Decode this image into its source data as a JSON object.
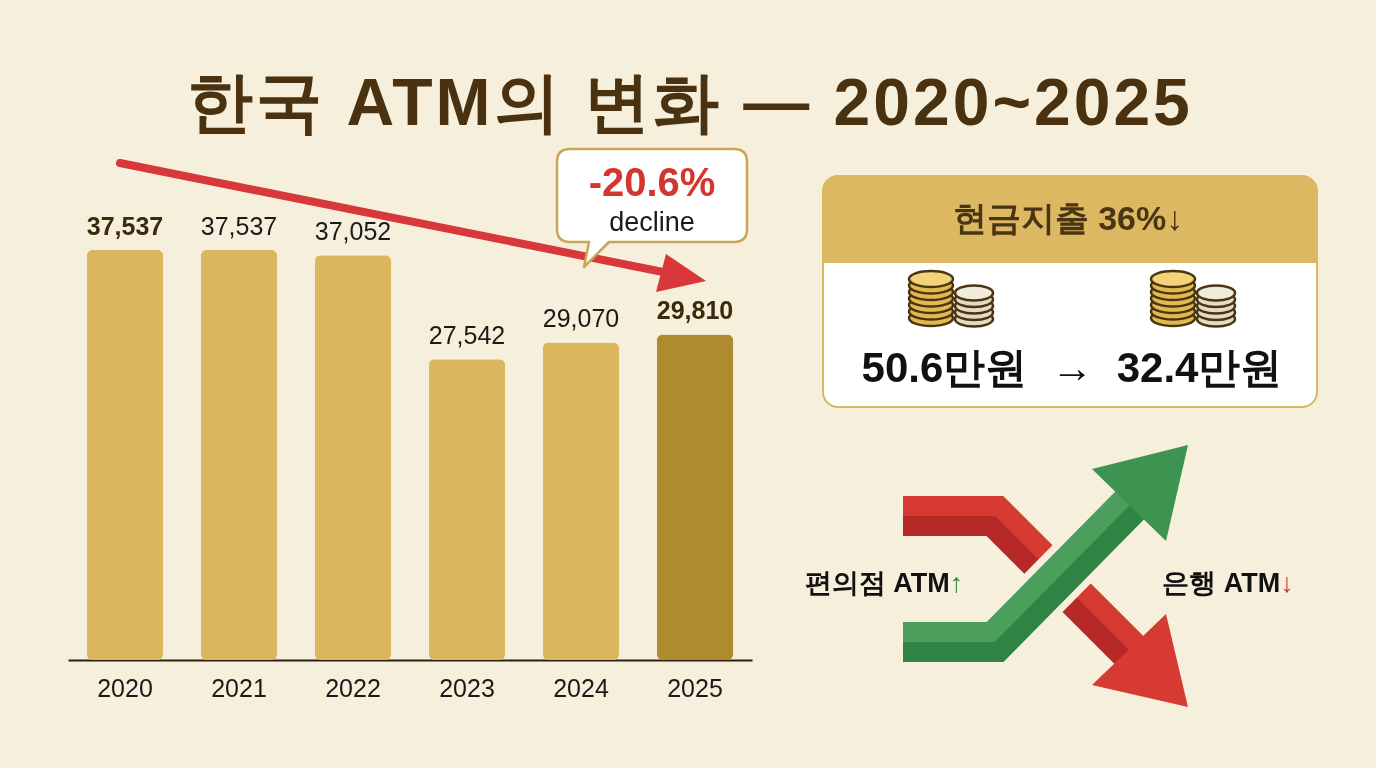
{
  "chart_data": {
    "type": "bar",
    "title": "한국 ATM의 변화 — 2020~2025",
    "categories": [
      "2020",
      "2021",
      "2022",
      "2023",
      "2024",
      "2025"
    ],
    "values": [
      37537,
      37537,
      37052,
      27542,
      29070,
      29810
    ],
    "value_labels": [
      "37,537",
      "37,537",
      "37,052",
      "27,542",
      "29,070",
      "29,810"
    ],
    "colors": [
      "#dcb65c",
      "#dcb65c",
      "#dcb65c",
      "#dcb65c",
      "#dcb65c",
      "#b08a2f"
    ],
    "annotations": [
      "-20.6%",
      "decline",
      "현금지출 36%↓",
      "50.6만원 → 32.4만원",
      "편의점 ATM↑",
      "은행 ATM↓"
    ]
  }
}
